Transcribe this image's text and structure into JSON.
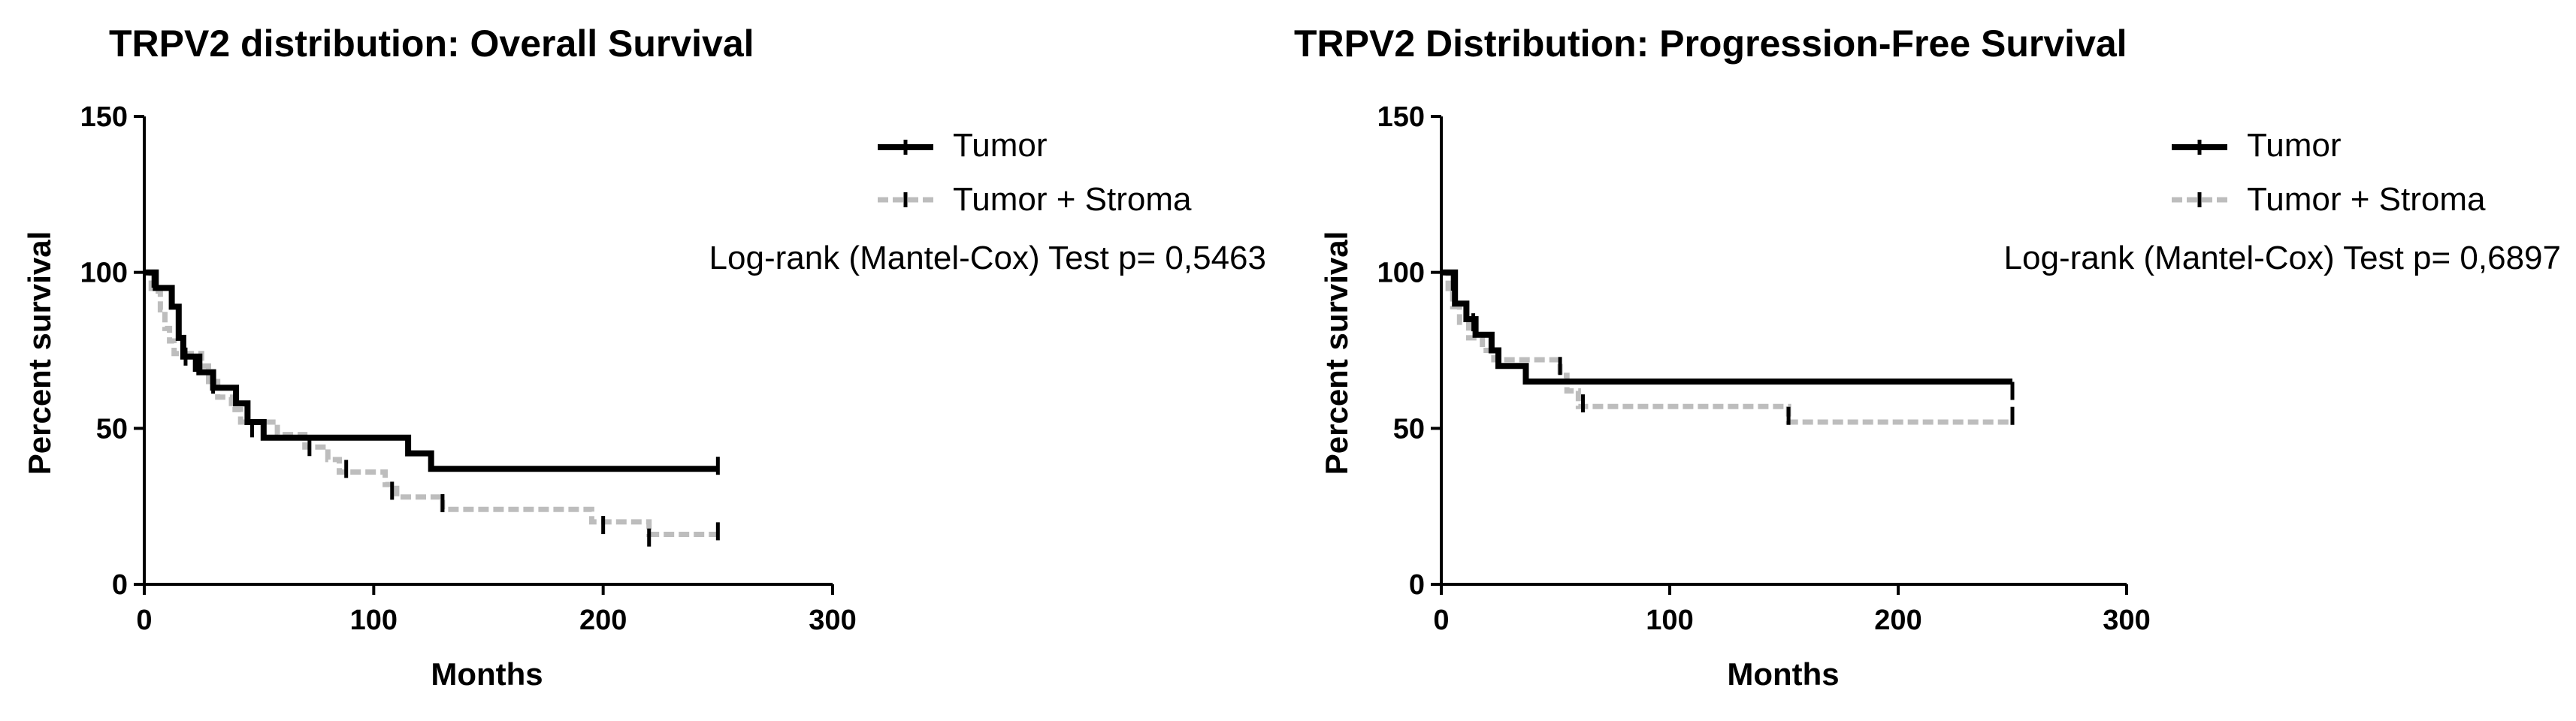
{
  "chart_data": [
    {
      "type": "line",
      "subtype": "kaplan-meier",
      "title": "TRPV2 distribution: Overall Survival",
      "xlabel": "Months",
      "ylabel": "Percent survival",
      "xlim": [
        0,
        300
      ],
      "ylim": [
        0,
        150
      ],
      "xticks": [
        "0",
        "100",
        "200",
        "300"
      ],
      "yticks": [
        "0",
        "50",
        "100",
        "150"
      ],
      "grid": false,
      "legend_position": "top-right",
      "annotation": "Log-rank (Mantel-Cox) Test p= 0,5463",
      "series": [
        {
          "name": "Tumor",
          "color": "#000000",
          "style": "solid",
          "points": [
            [
              0,
              100
            ],
            [
              5,
              100
            ],
            [
              5,
              95
            ],
            [
              12,
              95
            ],
            [
              12,
              89
            ],
            [
              15,
              89
            ],
            [
              15,
              79
            ],
            [
              17,
              79
            ],
            [
              17,
              73
            ],
            [
              24,
              73
            ],
            [
              24,
              68
            ],
            [
              30,
              68
            ],
            [
              30,
              63
            ],
            [
              40,
              63
            ],
            [
              40,
              58
            ],
            [
              45,
              58
            ],
            [
              45,
              52
            ],
            [
              52,
              52
            ],
            [
              52,
              47
            ],
            [
              115,
              47
            ],
            [
              115,
              42
            ],
            [
              125,
              42
            ],
            [
              125,
              37
            ],
            [
              250,
              37
            ]
          ],
          "censored": [
            [
              250,
              38
            ]
          ]
        },
        {
          "name": "Tumor + Stroma",
          "color": "#bdbdbd",
          "style": "dashed",
          "points": [
            [
              0,
              100
            ],
            [
              3,
              100
            ],
            [
              3,
              94
            ],
            [
              7,
              94
            ],
            [
              7,
              88
            ],
            [
              9,
              88
            ],
            [
              9,
              82
            ],
            [
              11,
              82
            ],
            [
              11,
              78
            ],
            [
              13,
              78
            ],
            [
              13,
              74
            ],
            [
              25,
              74
            ],
            [
              25,
              70
            ],
            [
              28,
              70
            ],
            [
              28,
              65
            ],
            [
              32,
              65
            ],
            [
              32,
              60
            ],
            [
              38,
              60
            ],
            [
              38,
              56
            ],
            [
              42,
              56
            ],
            [
              42,
              52
            ],
            [
              58,
              52
            ],
            [
              58,
              48
            ],
            [
              70,
              48
            ],
            [
              70,
              44
            ],
            [
              80,
              44
            ],
            [
              80,
              40
            ],
            [
              85,
              40
            ],
            [
              85,
              36
            ],
            [
              105,
              36
            ],
            [
              105,
              32
            ],
            [
              110,
              32
            ],
            [
              110,
              28
            ],
            [
              130,
              28
            ],
            [
              130,
              24
            ],
            [
              195,
              24
            ],
            [
              195,
              20
            ],
            [
              220,
              20
            ],
            [
              220,
              16
            ],
            [
              250,
              16
            ]
          ],
          "censored": [
            [
              4,
              98
            ],
            [
              18,
              73
            ],
            [
              22,
              71
            ],
            [
              30,
              64
            ],
            [
              47,
              50
            ],
            [
              72,
              44
            ],
            [
              88,
              37
            ],
            [
              108,
              30
            ],
            [
              130,
              26
            ],
            [
              200,
              19
            ],
            [
              220,
              15
            ],
            [
              250,
              17
            ]
          ]
        }
      ]
    },
    {
      "type": "line",
      "subtype": "kaplan-meier",
      "title": "TRPV2 Distribution: Progression-Free Survival",
      "xlabel": "Months",
      "ylabel": "Percent survival",
      "xlim": [
        0,
        300
      ],
      "ylim": [
        0,
        150
      ],
      "xticks": [
        "0",
        "100",
        "200",
        "300"
      ],
      "yticks": [
        "0",
        "50",
        "100",
        "150"
      ],
      "grid": false,
      "legend_position": "top-right",
      "annotation": "Log-rank (Mantel-Cox) Test p= 0,6897",
      "series": [
        {
          "name": "Tumor",
          "color": "#000000",
          "style": "solid",
          "points": [
            [
              0,
              100
            ],
            [
              6,
              100
            ],
            [
              6,
              90
            ],
            [
              11,
              90
            ],
            [
              11,
              85
            ],
            [
              15,
              85
            ],
            [
              15,
              80
            ],
            [
              22,
              80
            ],
            [
              22,
              75
            ],
            [
              25,
              75
            ],
            [
              25,
              70
            ],
            [
              37,
              70
            ],
            [
              37,
              65
            ],
            [
              250,
              65
            ]
          ],
          "censored": [
            [
              250,
              62
            ]
          ]
        },
        {
          "name": "Tumor + Stroma",
          "color": "#bdbdbd",
          "style": "dashed",
          "points": [
            [
              0,
              100
            ],
            [
              3,
              100
            ],
            [
              3,
              94
            ],
            [
              5,
              94
            ],
            [
              5,
              89
            ],
            [
              8,
              89
            ],
            [
              8,
              84
            ],
            [
              12,
              84
            ],
            [
              12,
              79
            ],
            [
              18,
              79
            ],
            [
              18,
              75
            ],
            [
              23,
              75
            ],
            [
              23,
              72
            ],
            [
              52,
              72
            ],
            [
              52,
              67
            ],
            [
              55,
              67
            ],
            [
              55,
              62
            ],
            [
              60,
              62
            ],
            [
              60,
              57
            ],
            [
              152,
              57
            ],
            [
              152,
              52
            ],
            [
              250,
              52
            ]
          ],
          "censored": [
            [
              5,
              97
            ],
            [
              14,
              84
            ],
            [
              22,
              78
            ],
            [
              52,
              70
            ],
            [
              62,
              58
            ],
            [
              152,
              54
            ],
            [
              250,
              54
            ]
          ]
        }
      ]
    }
  ]
}
